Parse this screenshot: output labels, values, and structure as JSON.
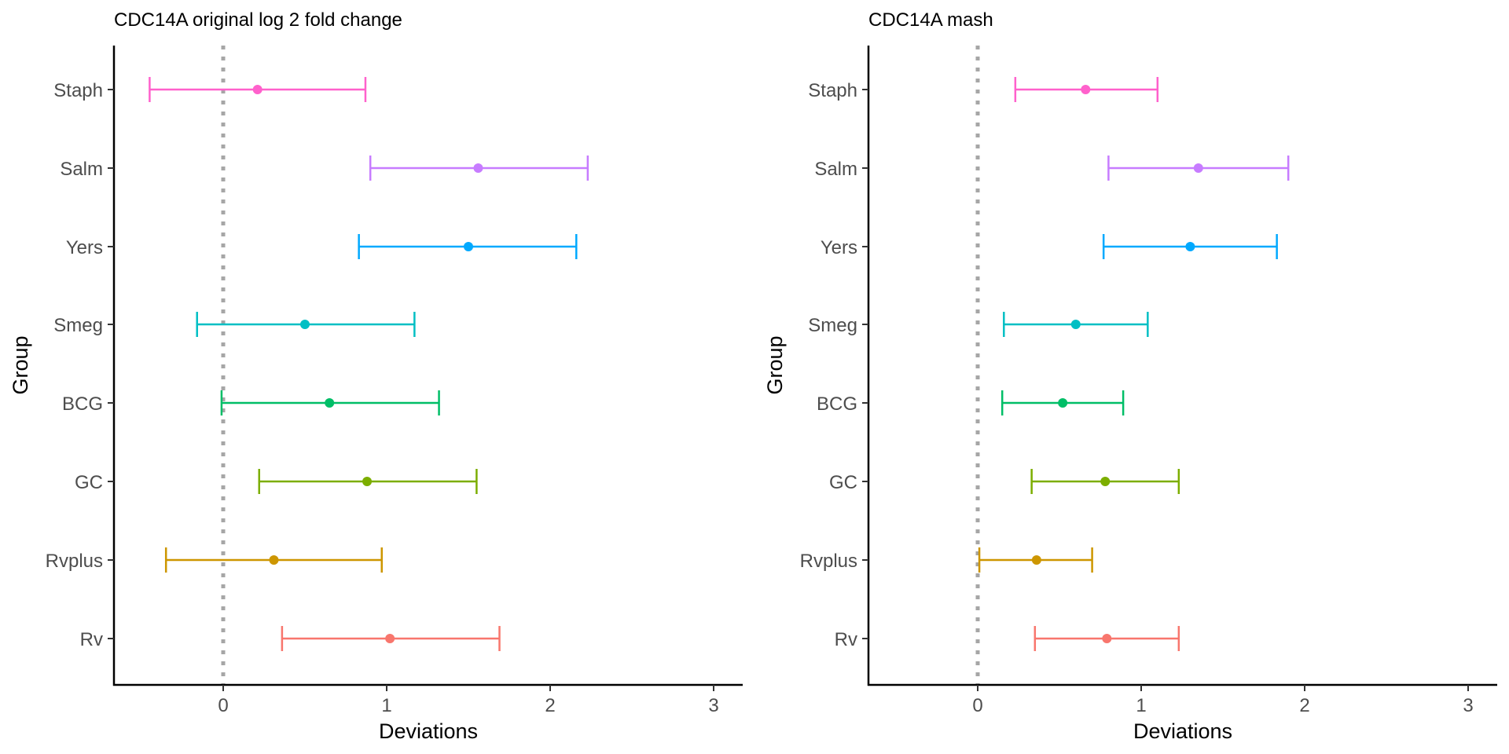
{
  "chart_data": [
    {
      "type": "scatter",
      "title": "CDC14A original log 2 fold change",
      "xlabel": "Deviations",
      "ylabel": "Group",
      "xlim": [
        -0.67,
        3.17
      ],
      "xticks": [
        0,
        1,
        2,
        3
      ],
      "reference_line": 0,
      "grid": false,
      "legend": "none",
      "categories": [
        "Rv",
        "Rvplus",
        "GC",
        "BCG",
        "Smeg",
        "Yers",
        "Salm",
        "Staph"
      ],
      "series": [
        {
          "category": "Rv",
          "color": "#F8766D",
          "estimate": 1.02,
          "low": 0.36,
          "high": 1.69
        },
        {
          "category": "Rvplus",
          "color": "#CD9600",
          "estimate": 0.31,
          "low": -0.35,
          "high": 0.97
        },
        {
          "category": "GC",
          "color": "#7CAE00",
          "estimate": 0.88,
          "low": 0.22,
          "high": 1.55
        },
        {
          "category": "BCG",
          "color": "#00BE67",
          "estimate": 0.65,
          "low": -0.01,
          "high": 1.32
        },
        {
          "category": "Smeg",
          "color": "#00BFC4",
          "estimate": 0.5,
          "low": -0.16,
          "high": 1.17
        },
        {
          "category": "Yers",
          "color": "#00A9FF",
          "estimate": 1.5,
          "low": 0.83,
          "high": 2.16
        },
        {
          "category": "Salm",
          "color": "#C77CFF",
          "estimate": 1.56,
          "low": 0.9,
          "high": 2.23
        },
        {
          "category": "Staph",
          "color": "#FF61CC",
          "estimate": 0.21,
          "low": -0.45,
          "high": 0.87
        }
      ]
    },
    {
      "type": "scatter",
      "title": "CDC14A mash",
      "xlabel": "Deviations",
      "ylabel": "Group",
      "xlim": [
        -0.67,
        3.17
      ],
      "xticks": [
        0,
        1,
        2,
        3
      ],
      "reference_line": 0,
      "grid": false,
      "legend": "none",
      "categories": [
        "Rv",
        "Rvplus",
        "GC",
        "BCG",
        "Smeg",
        "Yers",
        "Salm",
        "Staph"
      ],
      "series": [
        {
          "category": "Rv",
          "color": "#F8766D",
          "estimate": 0.79,
          "low": 0.35,
          "high": 1.23
        },
        {
          "category": "Rvplus",
          "color": "#CD9600",
          "estimate": 0.36,
          "low": 0.01,
          "high": 0.7
        },
        {
          "category": "GC",
          "color": "#7CAE00",
          "estimate": 0.78,
          "low": 0.33,
          "high": 1.23
        },
        {
          "category": "BCG",
          "color": "#00BE67",
          "estimate": 0.52,
          "low": 0.15,
          "high": 0.89
        },
        {
          "category": "Smeg",
          "color": "#00BFC4",
          "estimate": 0.6,
          "low": 0.16,
          "high": 1.04
        },
        {
          "category": "Yers",
          "color": "#00A9FF",
          "estimate": 1.3,
          "low": 0.77,
          "high": 1.83
        },
        {
          "category": "Salm",
          "color": "#C77CFF",
          "estimate": 1.35,
          "low": 0.8,
          "high": 1.9
        },
        {
          "category": "Staph",
          "color": "#FF61CC",
          "estimate": 0.66,
          "low": 0.23,
          "high": 1.1
        }
      ]
    }
  ]
}
